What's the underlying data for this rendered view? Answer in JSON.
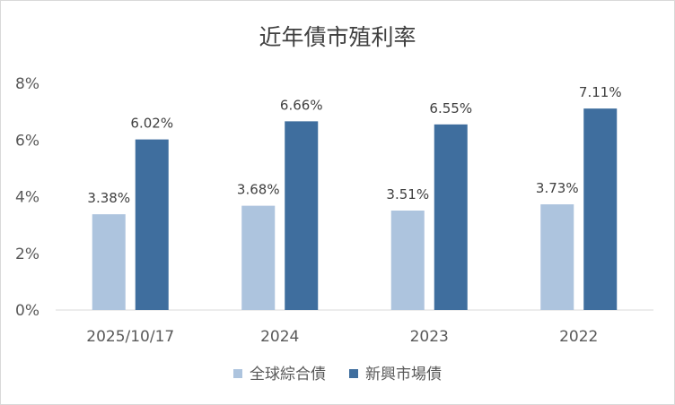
{
  "chart_data": {
    "type": "bar",
    "title": "近年債市殖利率",
    "categories": [
      "2025/10/17",
      "2024",
      "2023",
      "2022"
    ],
    "series": [
      {
        "name": "全球綜合債",
        "values": [
          3.38,
          3.68,
          3.51,
          3.73
        ],
        "labels": [
          "3.38%",
          "3.68%",
          "3.51%",
          "3.73%"
        ],
        "color": "#adc4de"
      },
      {
        "name": "新興市場債",
        "values": [
          6.02,
          6.66,
          6.55,
          7.11
        ],
        "labels": [
          "6.02%",
          "6.66%",
          "6.55%",
          "7.11%"
        ],
        "color": "#3f6e9e"
      }
    ],
    "yticks": [
      {
        "value": 0,
        "label": "0%"
      },
      {
        "value": 2,
        "label": "2%"
      },
      {
        "value": 4,
        "label": "4%"
      },
      {
        "value": 6,
        "label": "6%"
      },
      {
        "value": 8,
        "label": "8%"
      }
    ],
    "ylim": [
      0,
      8
    ],
    "grid": false,
    "legend": "bottom"
  }
}
